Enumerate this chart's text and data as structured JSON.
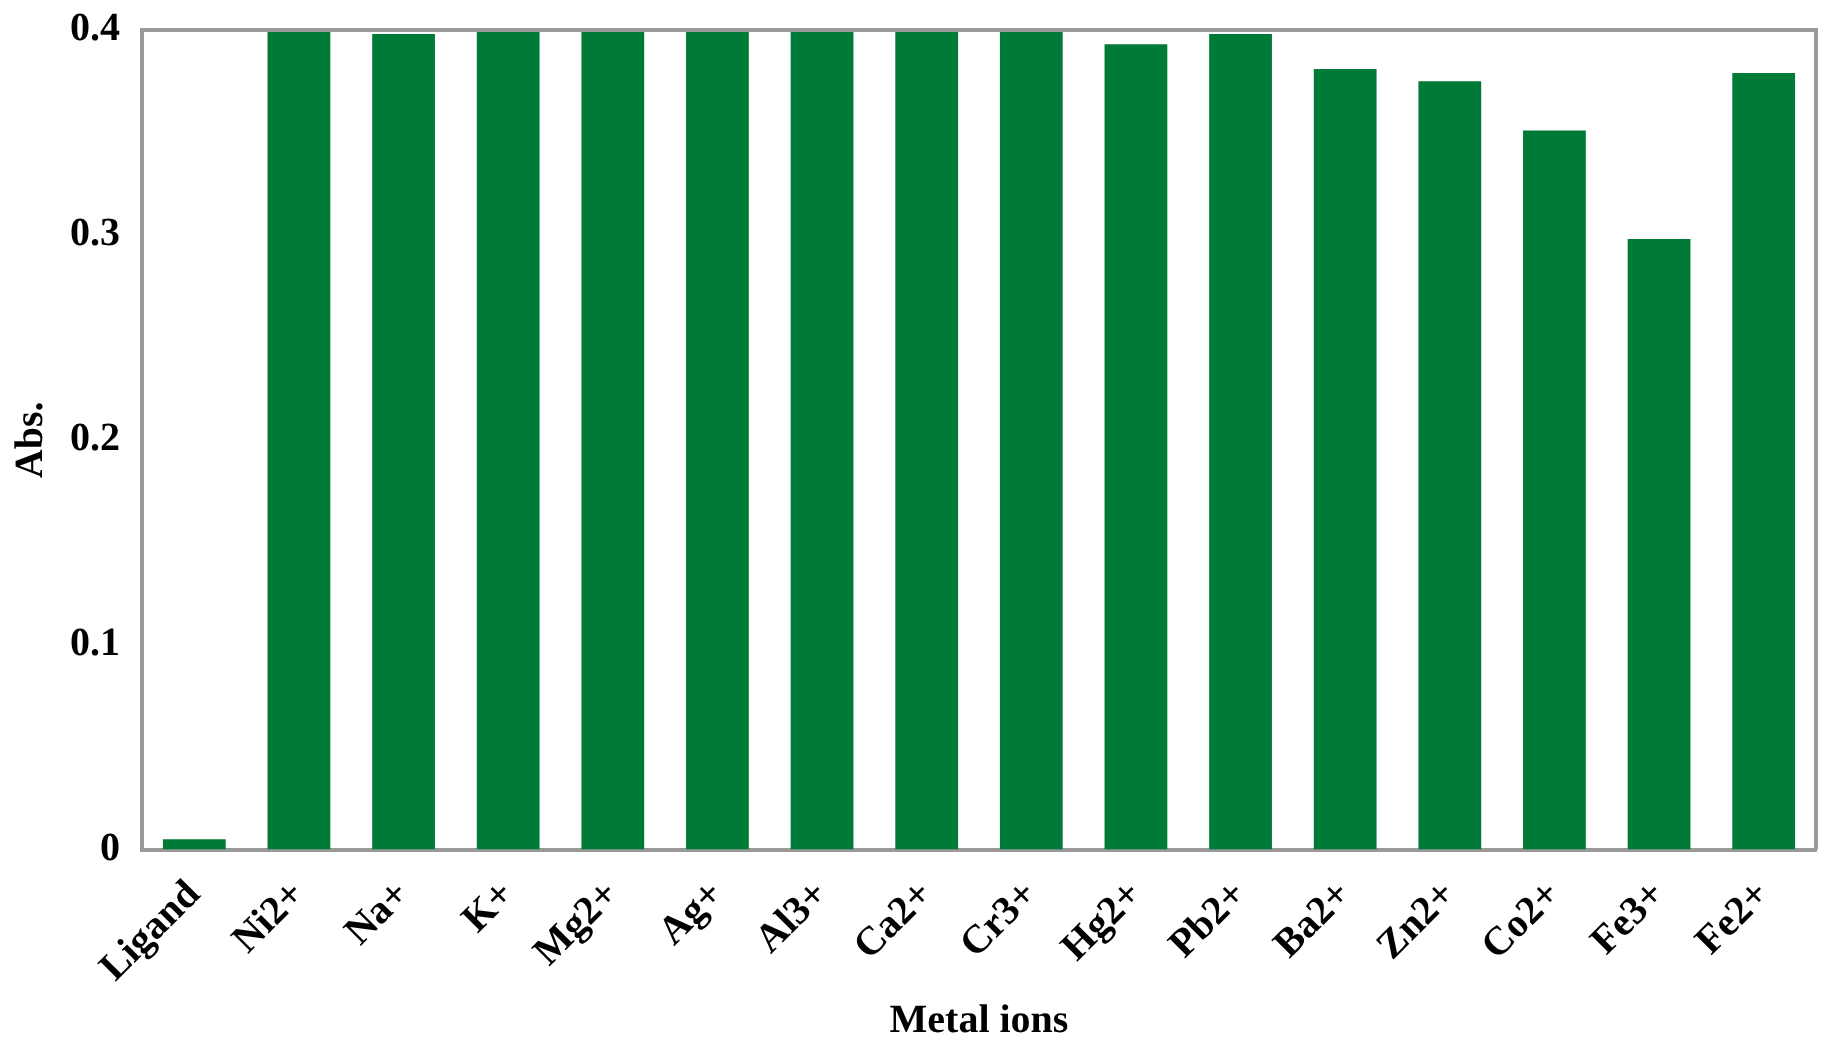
{
  "chart_data": {
    "type": "bar",
    "xlabel": "Metal ions",
    "ylabel": "Abs.",
    "categories": [
      "Ligand",
      "Ni2+",
      "Na+",
      "K+",
      "Mg2+",
      "Ag+",
      "Al3+",
      "Ca2+",
      "Cr3+",
      "Hg2+",
      "Pb2+",
      "Ba2+",
      "Zn2+",
      "Co2+",
      "Fe3+",
      "Fe2+"
    ],
    "values": [
      0.005,
      0.4,
      0.398,
      0.4,
      0.4,
      0.4,
      0.4,
      0.4,
      0.4,
      0.393,
      0.398,
      0.381,
      0.375,
      0.351,
      0.298,
      0.379
    ],
    "color": "#007a37",
    "ylim": [
      0,
      0.4
    ],
    "yticks": [
      0,
      0.1,
      0.2,
      0.3,
      0.4
    ],
    "grid": false,
    "legend": false
  }
}
